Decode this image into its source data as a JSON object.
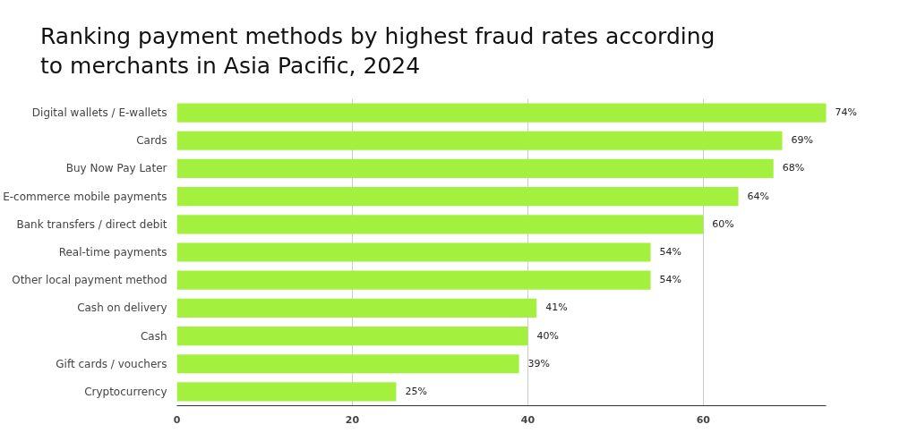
{
  "chart_data": {
    "type": "bar",
    "orientation": "horizontal",
    "title": "Ranking payment methods by highest fraud rates according to merchants in Asia Pacific, 2024",
    "categories": [
      "Digital wallets / E-wallets",
      "Cards",
      "Buy Now Pay Later",
      "E-commerce mobile payments",
      "Bank transfers / direct debit",
      "Real-time payments",
      "Other local payment method",
      "Cash on delivery",
      "Cash",
      "Gift cards / vouchers",
      "Cryptocurrency"
    ],
    "values": [
      74,
      69,
      68,
      64,
      60,
      54,
      54,
      41,
      40,
      39,
      25
    ],
    "value_labels": [
      "74%",
      "69%",
      "68%",
      "64%",
      "60%",
      "54%",
      "54%",
      "41%",
      "40%",
      "39%",
      "25%"
    ],
    "color": "#a4f03e",
    "xlim": [
      0,
      74
    ],
    "xticks": [
      0,
      20,
      40,
      60
    ],
    "grid": "x"
  }
}
